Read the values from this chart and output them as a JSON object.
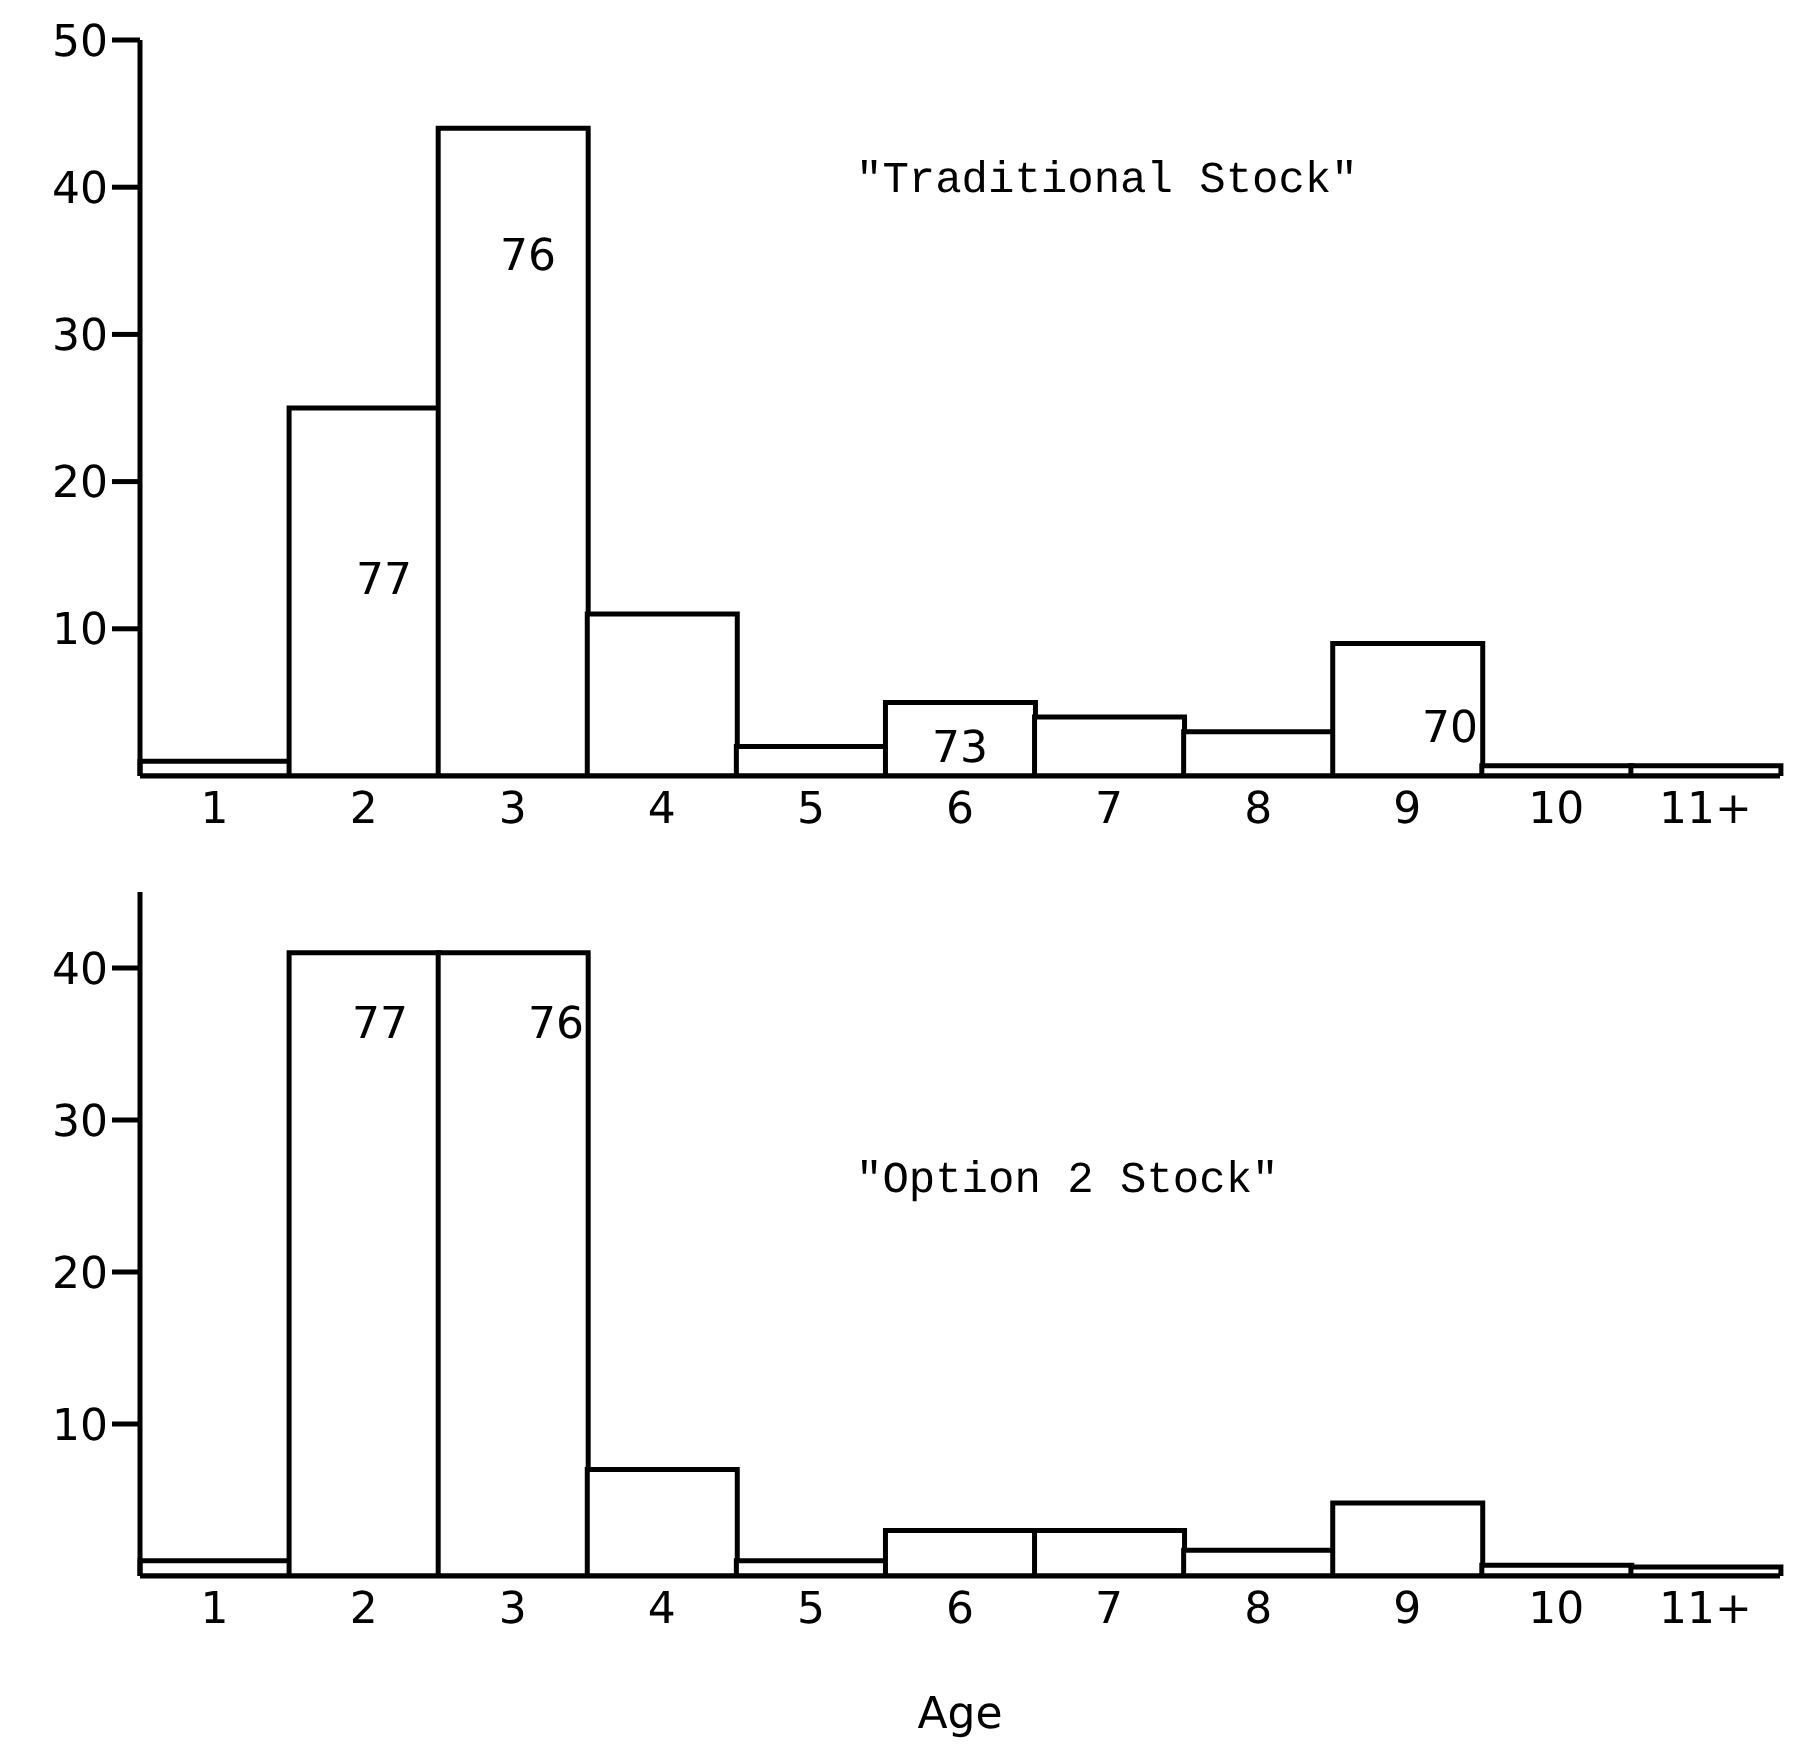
{
  "chart_data": [
    {
      "type": "bar",
      "title": "\"Traditional Stock\"",
      "categories": [
        "1",
        "2",
        "3",
        "4",
        "5",
        "6",
        "7",
        "8",
        "9",
        "10",
        "11+"
      ],
      "values": [
        1,
        25,
        44,
        11,
        2,
        5,
        4,
        3,
        9,
        0.7,
        0.7
      ],
      "color": "#000000",
      "ylim": [
        0,
        50
      ],
      "yticks": [
        10,
        20,
        30,
        40,
        50
      ],
      "annotations": [
        "77",
        "76",
        "73",
        "70"
      ]
    },
    {
      "type": "bar",
      "title": "\"Option 2 Stock\"",
      "xlabel": "Age",
      "categories": [
        "1",
        "2",
        "3",
        "4",
        "5",
        "6",
        "7",
        "8",
        "9",
        "10",
        "11+"
      ],
      "values": [
        1,
        41,
        41,
        7,
        1,
        3,
        3,
        1.7,
        4.8,
        0.7,
        0.6
      ],
      "color": "#000000",
      "ylim": [
        0,
        45
      ],
      "yticks": [
        10,
        20,
        30,
        40
      ],
      "annotations": [
        "77",
        "76"
      ]
    }
  ]
}
